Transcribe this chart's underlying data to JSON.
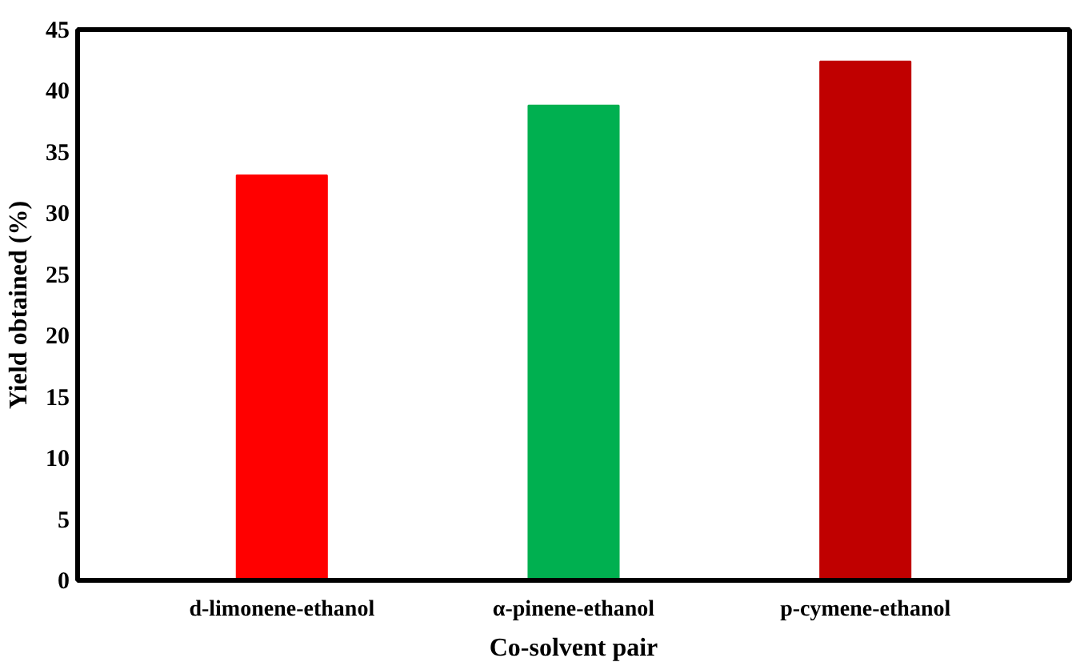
{
  "chart_data": {
    "type": "bar",
    "xlabel": "Co-solvent pair",
    "ylabel": "Yield obtained (%)",
    "categories": [
      "d-limonene-ethanol",
      "α-pinene-ethanol",
      "p-cymene-ethanol"
    ],
    "values": [
      33.1,
      38.8,
      42.4
    ],
    "colors": [
      "#ff0000",
      "#00b050",
      "#c00000"
    ],
    "ylim": [
      0,
      45
    ],
    "yticks": [
      0,
      5,
      10,
      15,
      20,
      25,
      30,
      35,
      40,
      45
    ],
    "grid": false
  }
}
